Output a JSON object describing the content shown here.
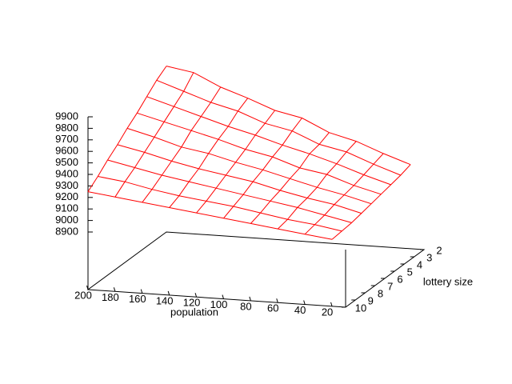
{
  "chart_data": {
    "type": "surface",
    "xlabel": "population",
    "ylabel": "lottery size",
    "x": [
      20,
      40,
      60,
      80,
      100,
      120,
      140,
      160,
      180,
      200
    ],
    "y": [
      2,
      3,
      4,
      5,
      6,
      7,
      8,
      9,
      10
    ],
    "values": [
      [
        9130,
        9210,
        9300,
        9360,
        9470,
        9520,
        9610,
        9690,
        9800,
        9840
      ],
      [
        9100,
        9180,
        9270,
        9320,
        9420,
        9470,
        9560,
        9620,
        9700,
        9780
      ],
      [
        9080,
        9150,
        9230,
        9300,
        9360,
        9430,
        9490,
        9560,
        9630,
        9700
      ],
      [
        9060,
        9120,
        9200,
        9240,
        9320,
        9370,
        9440,
        9500,
        9560,
        9620
      ],
      [
        9040,
        9100,
        9150,
        9210,
        9270,
        9320,
        9380,
        9420,
        9490,
        9550
      ],
      [
        9020,
        9080,
        9120,
        9170,
        9230,
        9270,
        9310,
        9360,
        9420,
        9470
      ],
      [
        9000,
        9050,
        9100,
        9140,
        9180,
        9220,
        9260,
        9300,
        9350,
        9400
      ],
      [
        8990,
        9030,
        9060,
        9100,
        9140,
        9170,
        9200,
        9240,
        9290,
        9320
      ],
      [
        8980,
        9010,
        9040,
        9070,
        9100,
        9130,
        9160,
        9190,
        9220,
        9250
      ]
    ],
    "color": "#ff0000",
    "xlim": [
      10,
      200
    ],
    "xticks": [
      200,
      180,
      160,
      140,
      120,
      100,
      80,
      60,
      40,
      20
    ],
    "ylim": [
      2,
      10
    ],
    "yticks": [
      2,
      3,
      4,
      5,
      6,
      7,
      8,
      9,
      10
    ],
    "zlim": [
      8400,
      9900
    ],
    "zticks": [
      8900,
      9000,
      9100,
      9200,
      9300,
      9400,
      9500,
      9600,
      9700,
      9800,
      9900
    ]
  }
}
